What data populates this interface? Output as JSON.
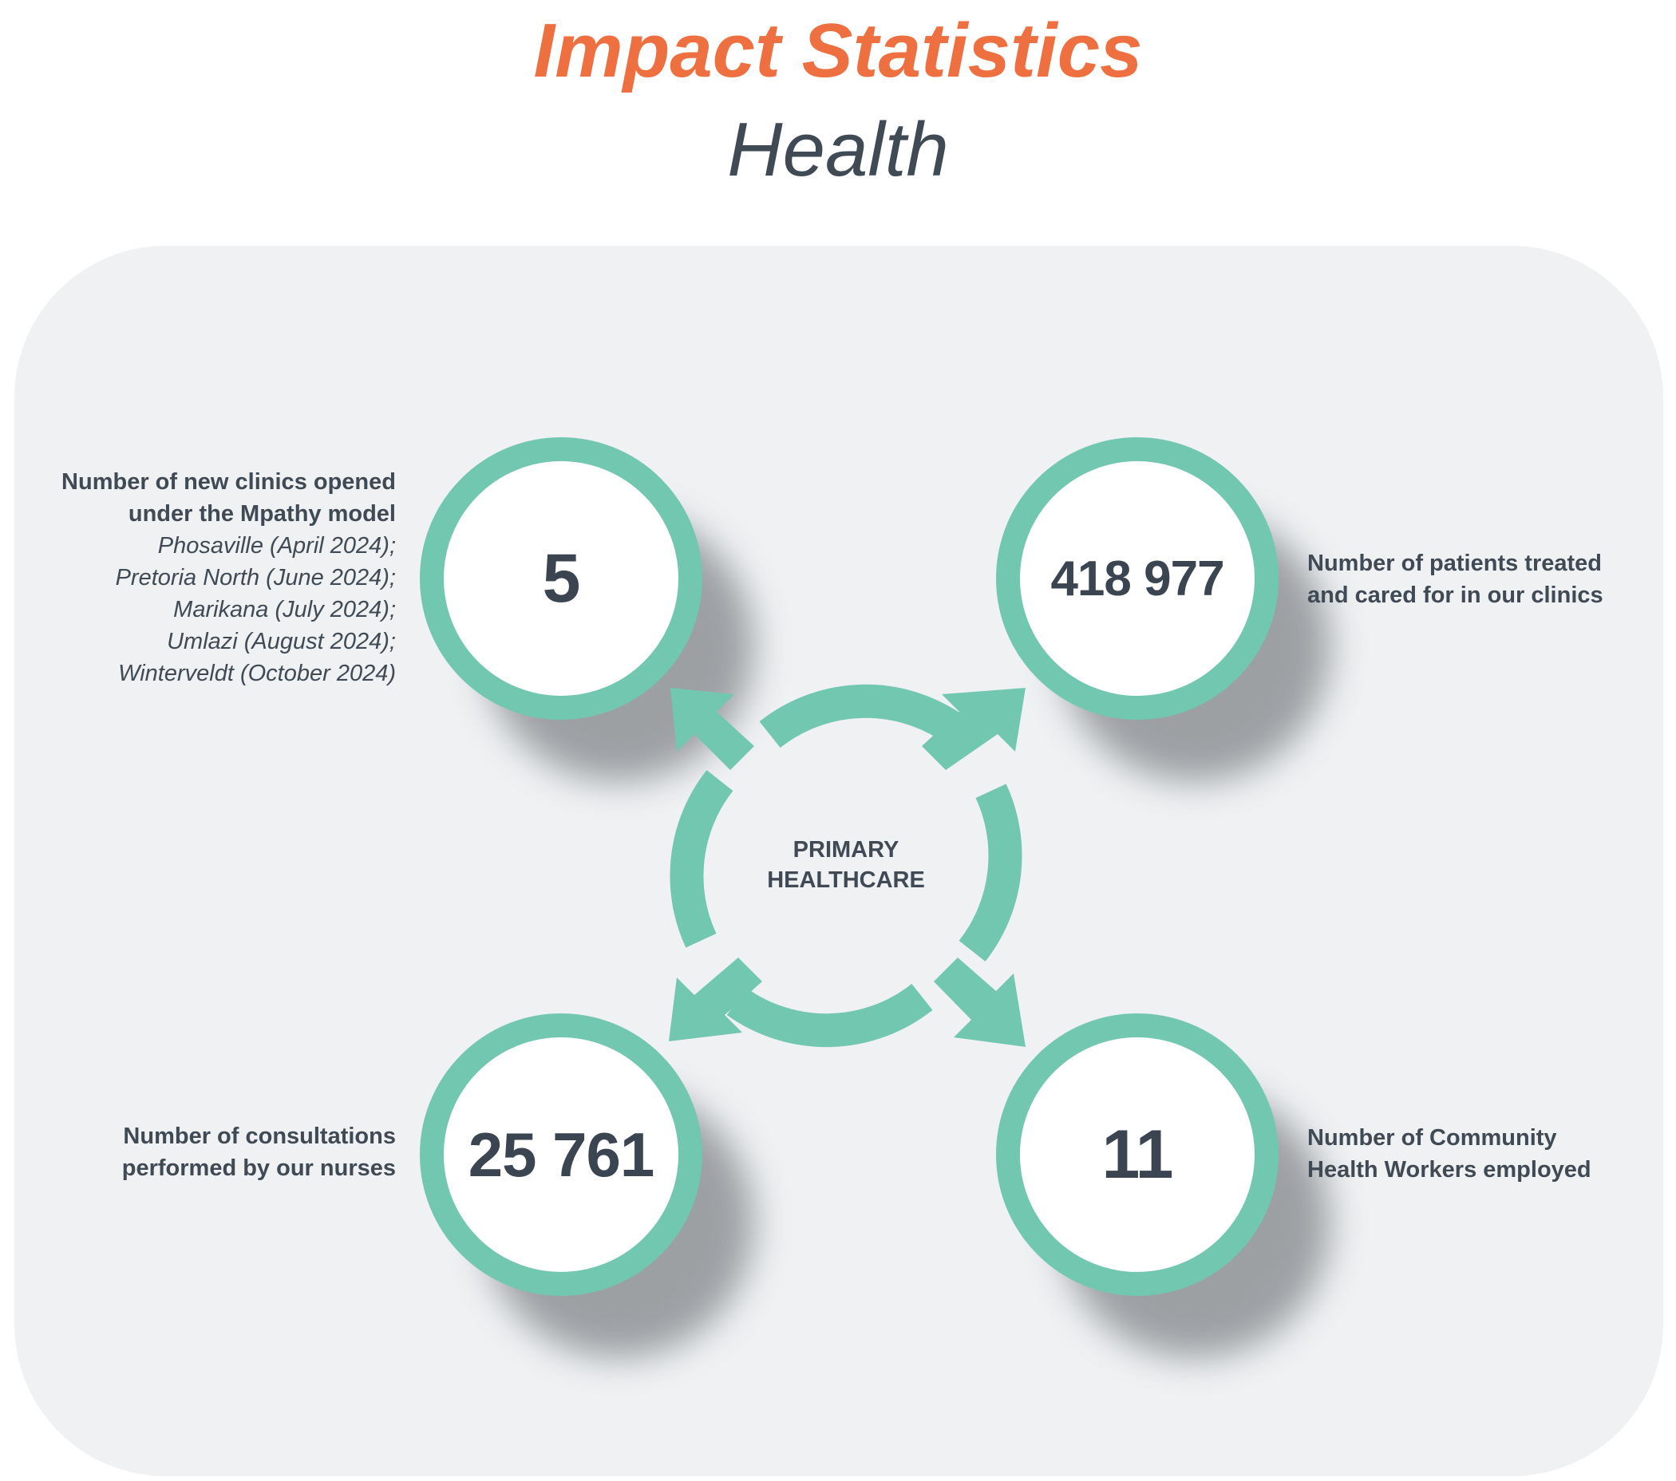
{
  "header": {
    "title": "Impact Statistics",
    "subtitle": "Health"
  },
  "center": {
    "line1": "PRIMARY",
    "line2": "HEALTHCARE"
  },
  "stats": {
    "clinics": {
      "value": "5",
      "label_line1": "Number of new clinics opened",
      "label_line2": "under the Mpathy model",
      "details": [
        "Phosaville (April 2024);",
        "Pretoria North (June 2024);",
        "Marikana (July 2024);",
        "Umlazi (August 2024);",
        "Winterveldt (October 2024)"
      ]
    },
    "patients": {
      "value": "418 977",
      "label_line1": "Number of patients treated",
      "label_line2": "and cared for in our clinics"
    },
    "consultations": {
      "value": "25 761",
      "label_line1": "Number of consultations",
      "label_line2": "performed by our nurses"
    },
    "health_workers": {
      "value": "11",
      "label_line1": "Number of Community",
      "label_line2": "Health Workers employed"
    }
  },
  "colors": {
    "title": "#ee7040",
    "accent": "#72c7b1",
    "text": "#3f4a55",
    "panel": "#eff1f3"
  }
}
